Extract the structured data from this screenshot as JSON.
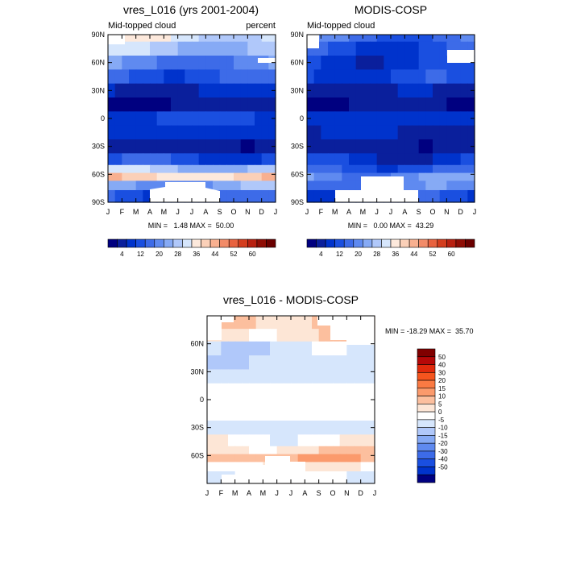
{
  "months": [
    "J",
    "F",
    "M",
    "A",
    "M",
    "J",
    "J",
    "A",
    "S",
    "O",
    "N",
    "D",
    "J"
  ],
  "lat_labels": [
    "90N",
    "60N",
    "30N",
    "0",
    "30S",
    "60S",
    "90S"
  ],
  "diff_lat_labels": [
    "60N",
    "30N",
    "0",
    "30S",
    "60S"
  ],
  "panels": [
    {
      "title": "vres_L016 (yrs 2001-2004)",
      "left_label": "Mid-topped cloud",
      "right_label": "percent",
      "stats": "MIN =   1.48 MAX =  50.00"
    },
    {
      "title": "MODIS-COSP",
      "left_label": "Mid-topped cloud",
      "right_label": "",
      "stats": "MIN =   0.00 MAX =  43.29"
    }
  ],
  "diff_panel": {
    "title": "vres_L016 - MODIS-COSP",
    "stats": "MIN = -18.29 MAX =  35.70"
  },
  "colorbar_abs": {
    "tick_labels": [
      "4",
      "12",
      "20",
      "28",
      "36",
      "44",
      "52",
      "60"
    ],
    "colors": [
      "#000080",
      "#0a1f9c",
      "#0033cc",
      "#1a4fe0",
      "#3d6be8",
      "#5f8af0",
      "#86aaf5",
      "#b0c8fa",
      "#d6e6fc",
      "#fde9dc",
      "#fbd0b8",
      "#f8b090",
      "#f28b68",
      "#e8623f",
      "#d43d1e",
      "#b82010",
      "#8f0d05",
      "#6b0000"
    ]
  },
  "colorbar_diff": {
    "tick_labels": [
      "50",
      "40",
      "30",
      "20",
      "15",
      "10",
      "5",
      "0",
      "-5",
      "-10",
      "-15",
      "-20",
      "-30",
      "-40",
      "-50"
    ],
    "colors": [
      "#800000",
      "#b50808",
      "#e02a0c",
      "#f5551e",
      "#fa7a43",
      "#fb9a6c",
      "#fcbf9e",
      "#fde6d6",
      "#ffffff",
      "#d6e6fc",
      "#b0c8fa",
      "#86aaf5",
      "#5f8af0",
      "#3d6be8",
      "#1a4fe0",
      "#0033cc",
      "#000080"
    ]
  },
  "chart_data": [
    {
      "type": "heatmap",
      "title": "vres_L016 (yrs 2001-2004)",
      "subtitle_left": "Mid-topped cloud",
      "subtitle_right": "percent",
      "x": [
        "J",
        "F",
        "M",
        "A",
        "M",
        "J",
        "J",
        "A",
        "S",
        "O",
        "N",
        "D",
        "J"
      ],
      "y": [
        "90N",
        "60N",
        "30N",
        "0",
        "30S",
        "60S",
        "90S"
      ],
      "zmin": 1.48,
      "zmax": 50.0,
      "bands": [
        {
          "lat": 90,
          "value": 30
        },
        {
          "lat": 75,
          "value": 26
        },
        {
          "lat": 60,
          "value": 18
        },
        {
          "lat": 45,
          "value": 14
        },
        {
          "lat": 30,
          "value": 7
        },
        {
          "lat": 15,
          "value": 4
        },
        {
          "lat": 0,
          "value": 11
        },
        {
          "lat": -15,
          "value": 9
        },
        {
          "lat": -30,
          "value": 5
        },
        {
          "lat": -45,
          "value": 12
        },
        {
          "lat": -55,
          "value": 26
        },
        {
          "lat": -62,
          "value": 36
        },
        {
          "lat": -72,
          "value": 22
        },
        {
          "lat": -82,
          "value": 14
        }
      ]
    },
    {
      "type": "heatmap",
      "title": "MODIS-COSP",
      "subtitle_left": "Mid-topped cloud",
      "x": [
        "J",
        "F",
        "M",
        "A",
        "M",
        "J",
        "J",
        "A",
        "S",
        "O",
        "N",
        "D",
        "J"
      ],
      "y": [
        "90N",
        "60N",
        "30N",
        "0",
        "30S",
        "60S",
        "90S"
      ],
      "zmin": 0.0,
      "zmax": 43.29,
      "bands": [
        {
          "lat": 90,
          "value": 16
        },
        {
          "lat": 75,
          "value": 12
        },
        {
          "lat": 60,
          "value": 10
        },
        {
          "lat": 45,
          "value": 11
        },
        {
          "lat": 30,
          "value": 6
        },
        {
          "lat": 15,
          "value": 4
        },
        {
          "lat": 0,
          "value": 9
        },
        {
          "lat": -15,
          "value": 7
        },
        {
          "lat": -30,
          "value": 5
        },
        {
          "lat": -45,
          "value": 9
        },
        {
          "lat": -55,
          "value": 14
        },
        {
          "lat": -62,
          "value": 20
        },
        {
          "lat": -72,
          "value": 18
        },
        {
          "lat": -82,
          "value": 12
        }
      ]
    },
    {
      "type": "heatmap",
      "title": "vres_L016 - MODIS-COSP",
      "x": [
        "J",
        "F",
        "M",
        "A",
        "M",
        "J",
        "J",
        "A",
        "S",
        "O",
        "N",
        "D",
        "J"
      ],
      "y": [
        "60N",
        "30N",
        "0",
        "30S",
        "60S"
      ],
      "zmin": -18.29,
      "zmax": 35.7,
      "bands": [
        {
          "lat": 82,
          "value": 12
        },
        {
          "lat": 70,
          "value": 8
        },
        {
          "lat": 55,
          "value": -3
        },
        {
          "lat": 40,
          "value": -4
        },
        {
          "lat": 25,
          "value": -2
        },
        {
          "lat": 10,
          "value": 2
        },
        {
          "lat": 0,
          "value": 3
        },
        {
          "lat": -15,
          "value": 2
        },
        {
          "lat": -30,
          "value": -2
        },
        {
          "lat": -45,
          "value": 3
        },
        {
          "lat": -55,
          "value": 8
        },
        {
          "lat": -62,
          "value": 14
        },
        {
          "lat": -72,
          "value": 6
        },
        {
          "lat": -82,
          "value": 2
        }
      ]
    }
  ]
}
